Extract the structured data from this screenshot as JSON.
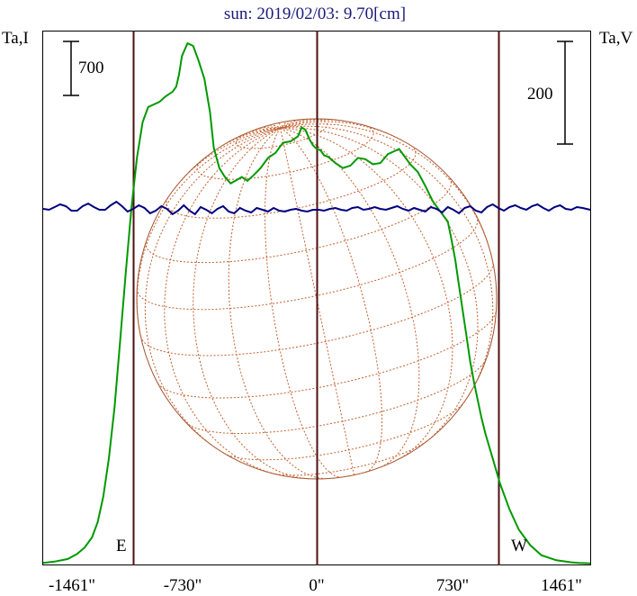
{
  "chart_data": {
    "type": "line",
    "title": "sun: 2019/02/03: 9.70[cm]",
    "left_axis_label": "Ta,I",
    "right_axis_label": "Ta,V",
    "x_tick_labels": [
      "-1461\"",
      "-730\"",
      "0\"",
      "730\"",
      "1461\""
    ],
    "x_ticks": [
      -1461,
      -730,
      0,
      730,
      1461
    ],
    "xlim": [
      -1461,
      1461
    ],
    "limb_markers": [
      {
        "label": "E",
        "x": -730
      },
      {
        "label": "W",
        "x": 730
      }
    ],
    "scale_bars": [
      {
        "label": "700",
        "side": "left",
        "value": 700
      },
      {
        "label": "200",
        "side": "right",
        "value": 200
      }
    ],
    "disk_radius_arcsec": 730,
    "series": [
      {
        "key": "I",
        "color": "#009900",
        "ylim": [
          0,
          2100
        ],
        "x": [
          -1461,
          -1400,
          -1330,
          -1280,
          -1240,
          -1200,
          -1170,
          -1140,
          -1110,
          -1080,
          -1050,
          -1020,
          -990,
          -960,
          -930,
          -900,
          -870,
          -840,
          -810,
          -790,
          -770,
          -750,
          -735,
          -720,
          -690,
          -660,
          -630,
          -600,
          -570,
          -550,
          -520,
          -490,
          -460,
          -430,
          -400,
          -370,
          -340,
          -300,
          -260,
          -220,
          -180,
          -140,
          -100,
          -80,
          -60,
          -40,
          -20,
          0,
          20,
          40,
          60,
          100,
          140,
          180,
          220,
          260,
          300,
          340,
          380,
          410,
          440,
          470,
          500,
          540,
          580,
          620,
          660,
          700,
          720,
          740,
          760,
          780,
          800,
          820,
          840,
          860,
          880,
          900,
          940,
          980,
          1030,
          1080,
          1140,
          1200,
          1280,
          1361,
          1400,
          1461
        ],
        "y": [
          10,
          15,
          25,
          45,
          70,
          110,
          170,
          270,
          420,
          620,
          880,
          1150,
          1400,
          1600,
          1740,
          1800,
          1810,
          1820,
          1840,
          1850,
          1860,
          1880,
          1930,
          2000,
          2050,
          2040,
          1980,
          1910,
          1780,
          1640,
          1560,
          1525,
          1500,
          1512,
          1525,
          1510,
          1530,
          1560,
          1600,
          1620,
          1660,
          1665,
          1685,
          1720,
          1710,
          1675,
          1650,
          1635,
          1630,
          1610,
          1605,
          1580,
          1560,
          1570,
          1600,
          1595,
          1575,
          1580,
          1615,
          1625,
          1635,
          1605,
          1575,
          1545,
          1490,
          1430,
          1390,
          1350,
          1280,
          1200,
          1100,
          1000,
          900,
          800,
          720,
          650,
          580,
          520,
          420,
          320,
          220,
          140,
          80,
          40,
          20,
          12,
          10,
          8
        ]
      },
      {
        "key": "V",
        "color": "#000080",
        "ylim": [
          -400,
          200
        ],
        "x": [
          -1461,
          -1430,
          -1400,
          -1370,
          -1340,
          -1310,
          -1280,
          -1250,
          -1220,
          -1190,
          -1160,
          -1130,
          -1100,
          -1070,
          -1040,
          -1010,
          -980,
          -950,
          -920,
          -890,
          -860,
          -830,
          -800,
          -770,
          -740,
          -710,
          -680,
          -650,
          -620,
          -590,
          -560,
          -530,
          -500,
          -470,
          -440,
          -410,
          -380,
          -350,
          -320,
          -290,
          -260,
          -230,
          -200,
          -170,
          -140,
          -110,
          -80,
          -50,
          -20,
          10,
          40,
          70,
          100,
          130,
          160,
          190,
          220,
          250,
          280,
          310,
          340,
          370,
          400,
          430,
          460,
          490,
          520,
          550,
          580,
          610,
          640,
          670,
          700,
          730,
          760,
          790,
          820,
          850,
          880,
          910,
          940,
          970,
          1000,
          1030,
          1060,
          1090,
          1120,
          1150,
          1180,
          1210,
          1240,
          1270,
          1300,
          1330,
          1360,
          1390,
          1420,
          1461
        ],
        "y": [
          0,
          -1,
          2,
          5,
          3,
          -2,
          -2,
          3,
          6,
          2,
          -1,
          -1,
          4,
          8,
          3,
          -3,
          0,
          4,
          1,
          -5,
          -2,
          3,
          0,
          -6,
          -2,
          4,
          -2,
          -6,
          2,
          -1,
          -5,
          0,
          3,
          -3,
          -5,
          1,
          -2,
          -4,
          1,
          -1,
          -3,
          1,
          -2,
          -3,
          -1,
          0,
          -2,
          -3,
          -1,
          -1,
          -2,
          0,
          1,
          -1,
          -2,
          1,
          2,
          -1,
          0,
          2,
          0,
          -1,
          1,
          3,
          0,
          -2,
          1,
          -1,
          -3,
          2,
          0,
          -4,
          2,
          -1,
          -5,
          1,
          3,
          -2,
          -4,
          2,
          5,
          1,
          -2,
          2,
          4,
          1,
          -1,
          3,
          5,
          1,
          -2,
          2,
          4,
          0,
          -1,
          2,
          1,
          -1
        ]
      }
    ]
  }
}
